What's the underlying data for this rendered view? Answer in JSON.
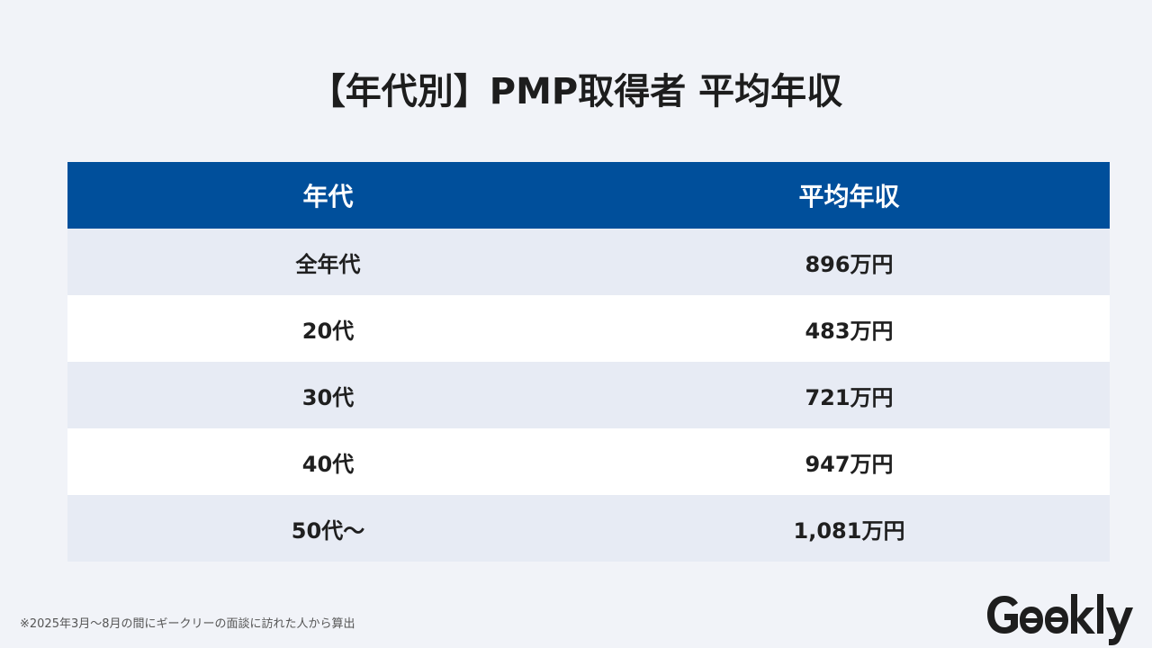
{
  "title": "【年代別】PMP取得者 平均年収",
  "table": {
    "headers": [
      "年代",
      "平均年収"
    ],
    "rows": [
      [
        "全年代",
        "896万円"
      ],
      [
        "20代",
        "483万円"
      ],
      [
        "30代",
        "721万円"
      ],
      [
        "40代",
        "947万円"
      ],
      [
        "50代〜",
        "1,081万円"
      ]
    ]
  },
  "footnote": "※2025年3月〜8月の間にギークリーの面談に訪れた人から算出",
  "logo": {
    "text": "Geekly",
    "icon": "geekly-logo"
  },
  "colors": {
    "background": "#f1f3f8",
    "header_bg": "#004f9b",
    "row_alt_bg": "#e7ebf4",
    "row_bg": "#ffffff"
  }
}
